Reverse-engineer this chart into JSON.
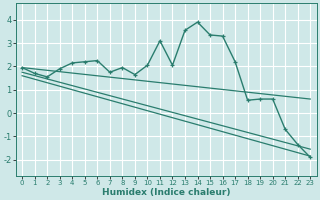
{
  "xlabel": "Humidex (Indice chaleur)",
  "xlim": [
    -0.5,
    23.5
  ],
  "ylim": [
    -2.7,
    4.7
  ],
  "xticks": [
    0,
    1,
    2,
    3,
    4,
    5,
    6,
    7,
    8,
    9,
    10,
    11,
    12,
    13,
    14,
    15,
    16,
    17,
    18,
    19,
    20,
    21,
    22,
    23
  ],
  "yticks": [
    -2,
    -1,
    0,
    1,
    2,
    3,
    4
  ],
  "line_color": "#2a7d6e",
  "bg_color": "#cfe8e8",
  "grid_color": "#b8d8d8",
  "curve_x": [
    0,
    1,
    2,
    3,
    4,
    5,
    6,
    7,
    8,
    9,
    10,
    11,
    12,
    13,
    14,
    15,
    16,
    17,
    18,
    19,
    20,
    21,
    22,
    23
  ],
  "curve_y": [
    1.95,
    1.7,
    1.55,
    1.9,
    2.15,
    2.2,
    2.25,
    1.75,
    1.95,
    1.65,
    2.05,
    3.1,
    2.05,
    3.55,
    3.9,
    3.35,
    3.3,
    2.2,
    0.55,
    0.6,
    0.6,
    -0.7,
    -1.35,
    -1.9
  ],
  "linear_lines": [
    {
      "x0": 0,
      "y0": 1.95,
      "x1": 23,
      "y1": 0.6
    },
    {
      "x0": 0,
      "y0": 1.75,
      "x1": 23,
      "y1": -1.55
    },
    {
      "x0": 0,
      "y0": 1.6,
      "x1": 23,
      "y1": -1.85
    }
  ]
}
